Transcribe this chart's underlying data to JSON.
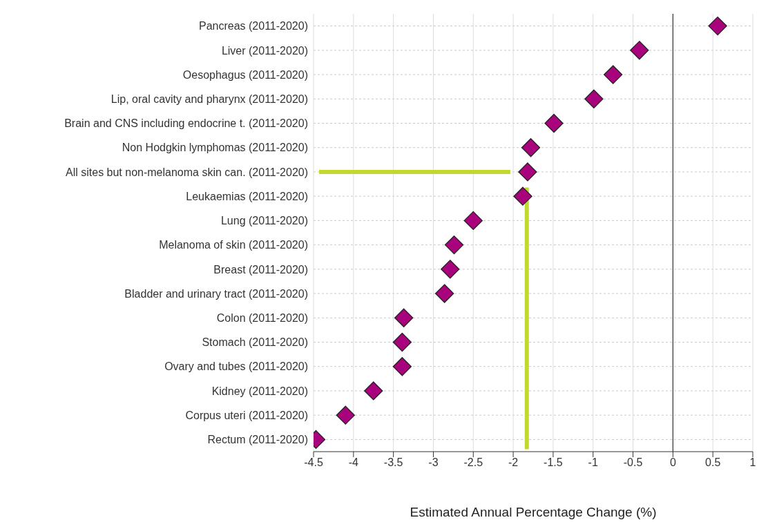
{
  "chart_data": {
    "type": "scatter",
    "orientation": "horizontal",
    "xlabel": "Estimated Annual Percentage Change (%)",
    "categories": [
      "Pancreas (2011-2020)",
      "Liver (2011-2020)",
      "Oesophagus (2011-2020)",
      "Lip, oral cavity and pharynx (2011-2020)",
      "Brain and CNS including endocrine t. (2011-2020)",
      "Non Hodgkin lymphomas (2011-2020)",
      "All sites but non-melanoma skin can. (2011-2020)",
      "Leukaemias (2011-2020)",
      "Lung (2011-2020)",
      "Melanoma of skin (2011-2020)",
      "Breast (2011-2020)",
      "Bladder and urinary tract (2011-2020)",
      "Colon (2011-2020)",
      "Stomach (2011-2020)",
      "Ovary and tubes (2011-2020)",
      "Kidney (2011-2020)",
      "Corpus uteri (2011-2020)",
      "Rectum (2011-2020)"
    ],
    "values": [
      0.56,
      -0.42,
      -0.75,
      -0.99,
      -1.49,
      -1.78,
      -1.82,
      -1.88,
      -2.5,
      -2.74,
      -2.79,
      -2.86,
      -3.37,
      -3.39,
      -3.39,
      -3.75,
      -4.1,
      -4.47
    ],
    "color": "#a8037c",
    "marker": "diamond",
    "xlim": [
      -4.5,
      1
    ],
    "xticks": [
      -4.5,
      -4,
      -3.5,
      -3,
      -2.5,
      -2,
      -1.5,
      -1,
      -0.5,
      0,
      0.5,
      1
    ],
    "grid": true,
    "ref_lines": [
      {
        "axis": "x",
        "value": 0,
        "color": "#333333"
      },
      {
        "axis": "x",
        "value": -1.83,
        "color": "#c2d72f"
      },
      {
        "axis": "y",
        "value": "All sites but non-melanoma skin can. (2011-2020)",
        "color": "#c2d72f"
      }
    ]
  }
}
